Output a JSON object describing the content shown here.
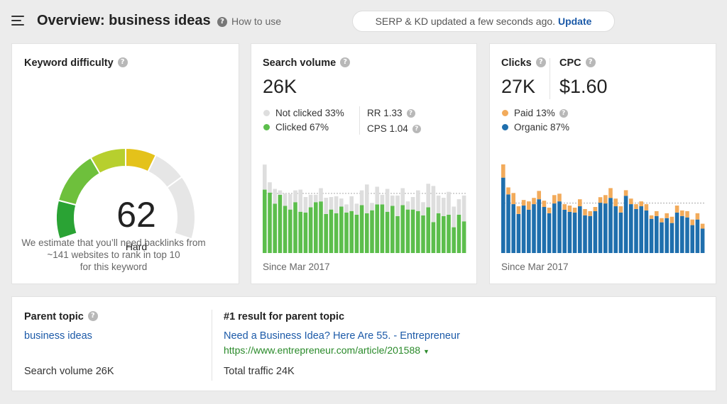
{
  "header": {
    "title": "Overview: business ideas",
    "how_to": "How to use",
    "status_text": "SERP & KD updated a few seconds ago.",
    "update_label": "Update"
  },
  "keyword_difficulty": {
    "title": "Keyword difficulty",
    "score": "62",
    "score_value": 62,
    "label": "Hard",
    "description_line1": "We estimate that you’ll need backlinks from",
    "description_line2": "~141 websites to rank in top 10",
    "description_line3": "for this keyword"
  },
  "search_volume": {
    "title": "Search volume",
    "value": "26K",
    "not_clicked": "Not clicked 33%",
    "clicked": "Clicked 67%",
    "rr": "RR 1.33",
    "cps": "CPS 1.04",
    "since": "Since Mar 2017"
  },
  "clicks": {
    "title": "Clicks",
    "value": "27K",
    "cpc_title": "CPC",
    "cpc_value": "$1.60",
    "paid": "Paid 13%",
    "organic": "Organic 87%",
    "since": "Since Mar 2017"
  },
  "parent_topic": {
    "title": "Parent topic",
    "topic": "business ideas",
    "search_volume": "Search volume 26K",
    "result_title": "#1 result for parent topic",
    "result_link": "Need a Business Idea? Here Are 55. - Entrepreneur",
    "result_url": "https://www.entrepreneur.com/article/201588",
    "total_traffic": "Total traffic 24K"
  },
  "colors": {
    "clicked": "#5cbe4c",
    "not_clicked": "#dedede",
    "paid": "#f2ab5b",
    "organic": "#1f6fad",
    "gauge_green_dark": "#2aa334",
    "gauge_green": "#6ec03c",
    "gauge_yellow_green": "#b7cf2e",
    "gauge_yellow": "#e4c21a",
    "gauge_grey": "#e6e6e6",
    "link": "#1c5aa8",
    "url": "#2a8a2a"
  },
  "chart_data": [
    {
      "type": "bar",
      "stacked": true,
      "series": [
        {
          "name": "Clicked",
          "values": [
            86,
            82,
            67,
            79,
            64,
            59,
            69,
            56,
            55,
            62,
            69,
            70,
            53,
            59,
            54,
            63,
            55,
            57,
            52,
            65,
            54,
            58,
            66,
            66,
            56,
            64,
            50,
            65,
            59,
            59,
            57,
            51,
            62,
            42,
            54,
            50,
            52,
            35,
            52,
            43
          ]
        },
        {
          "name": "Not clicked",
          "values": [
            34,
            14,
            20,
            6,
            17,
            21,
            16,
            30,
            21,
            17,
            10,
            18,
            22,
            17,
            23,
            11,
            11,
            20,
            15,
            20,
            39,
            10,
            24,
            13,
            31,
            14,
            28,
            23,
            11,
            17,
            28,
            18,
            32,
            49,
            24,
            25,
            31,
            28,
            21,
            35
          ]
        }
      ],
      "grid": false
    },
    {
      "type": "bar",
      "stacked": true,
      "series": [
        {
          "name": "Organic",
          "values": [
            108,
            84,
            70,
            56,
            68,
            62,
            70,
            77,
            66,
            57,
            71,
            74,
            62,
            59,
            58,
            67,
            54,
            53,
            60,
            72,
            71,
            79,
            67,
            58,
            82,
            70,
            63,
            67,
            61,
            49,
            53,
            44,
            50,
            43,
            58,
            53,
            51,
            40,
            48,
            35
          ]
        },
        {
          "name": "Paid",
          "values": [
            19,
            10,
            16,
            11,
            8,
            12,
            9,
            12,
            9,
            8,
            12,
            11,
            8,
            9,
            7,
            10,
            9,
            7,
            6,
            8,
            12,
            14,
            11,
            9,
            8,
            8,
            7,
            7,
            9,
            5,
            7,
            6,
            7,
            9,
            10,
            8,
            9,
            8,
            9,
            7
          ]
        }
      ],
      "grid": false
    }
  ]
}
